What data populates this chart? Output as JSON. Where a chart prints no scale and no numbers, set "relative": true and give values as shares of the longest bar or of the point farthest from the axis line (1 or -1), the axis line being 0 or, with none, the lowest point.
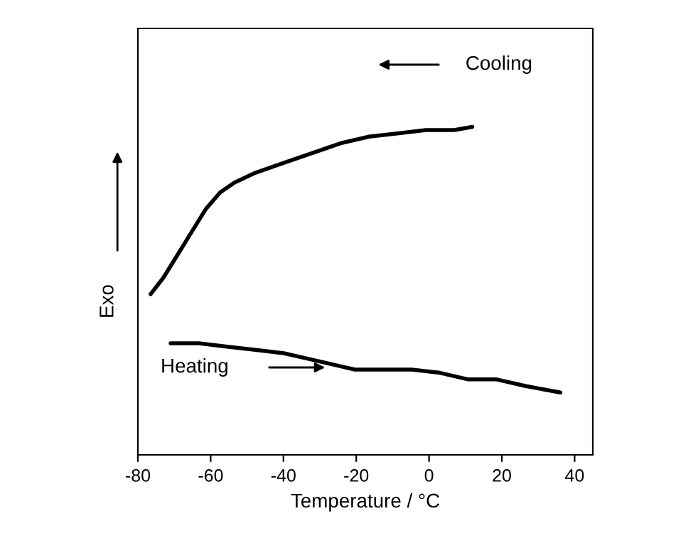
{
  "chart_data": {
    "type": "line",
    "relative": true,
    "xlabel": "Temperature / °C",
    "ylabel": "Exo",
    "xlim": [
      -80,
      45
    ],
    "xticks": [
      -80,
      -60,
      -40,
      -20,
      0,
      20,
      40
    ],
    "grid": false,
    "marker": "none",
    "line_style": "solid",
    "series": [
      {
        "name": "Cooling",
        "color": "#000000",
        "x": [
          -76.5,
          -73.0,
          -69.1,
          -65.2,
          -61.3,
          -57.4,
          -53.5,
          -47.7,
          -39.9,
          -32.1,
          -24.3,
          -16.5,
          -8.7,
          -0.9,
          6.9,
          11.9
        ],
        "values": [
          0.49,
          0.54,
          0.61,
          0.68,
          0.75,
          0.8,
          0.83,
          0.86,
          0.89,
          0.92,
          0.95,
          0.97,
          0.98,
          0.99,
          0.99,
          1
        ]
      },
      {
        "name": "Heating",
        "color": "#000000",
        "x": [
          -71.0,
          -63.2,
          -55.5,
          -47.7,
          -39.9,
          -32.1,
          -24.3,
          -20.4,
          -17.3,
          -12.6,
          -4.8,
          3.0,
          10.8,
          18.6,
          26.4,
          36.1
        ],
        "values": [
          0.34,
          0.34,
          0.33,
          0.32,
          0.31,
          0.29,
          0.27,
          0.26,
          0.26,
          0.26,
          0.26,
          0.25,
          0.23,
          0.23,
          0.21,
          0.19
        ]
      }
    ]
  }
}
